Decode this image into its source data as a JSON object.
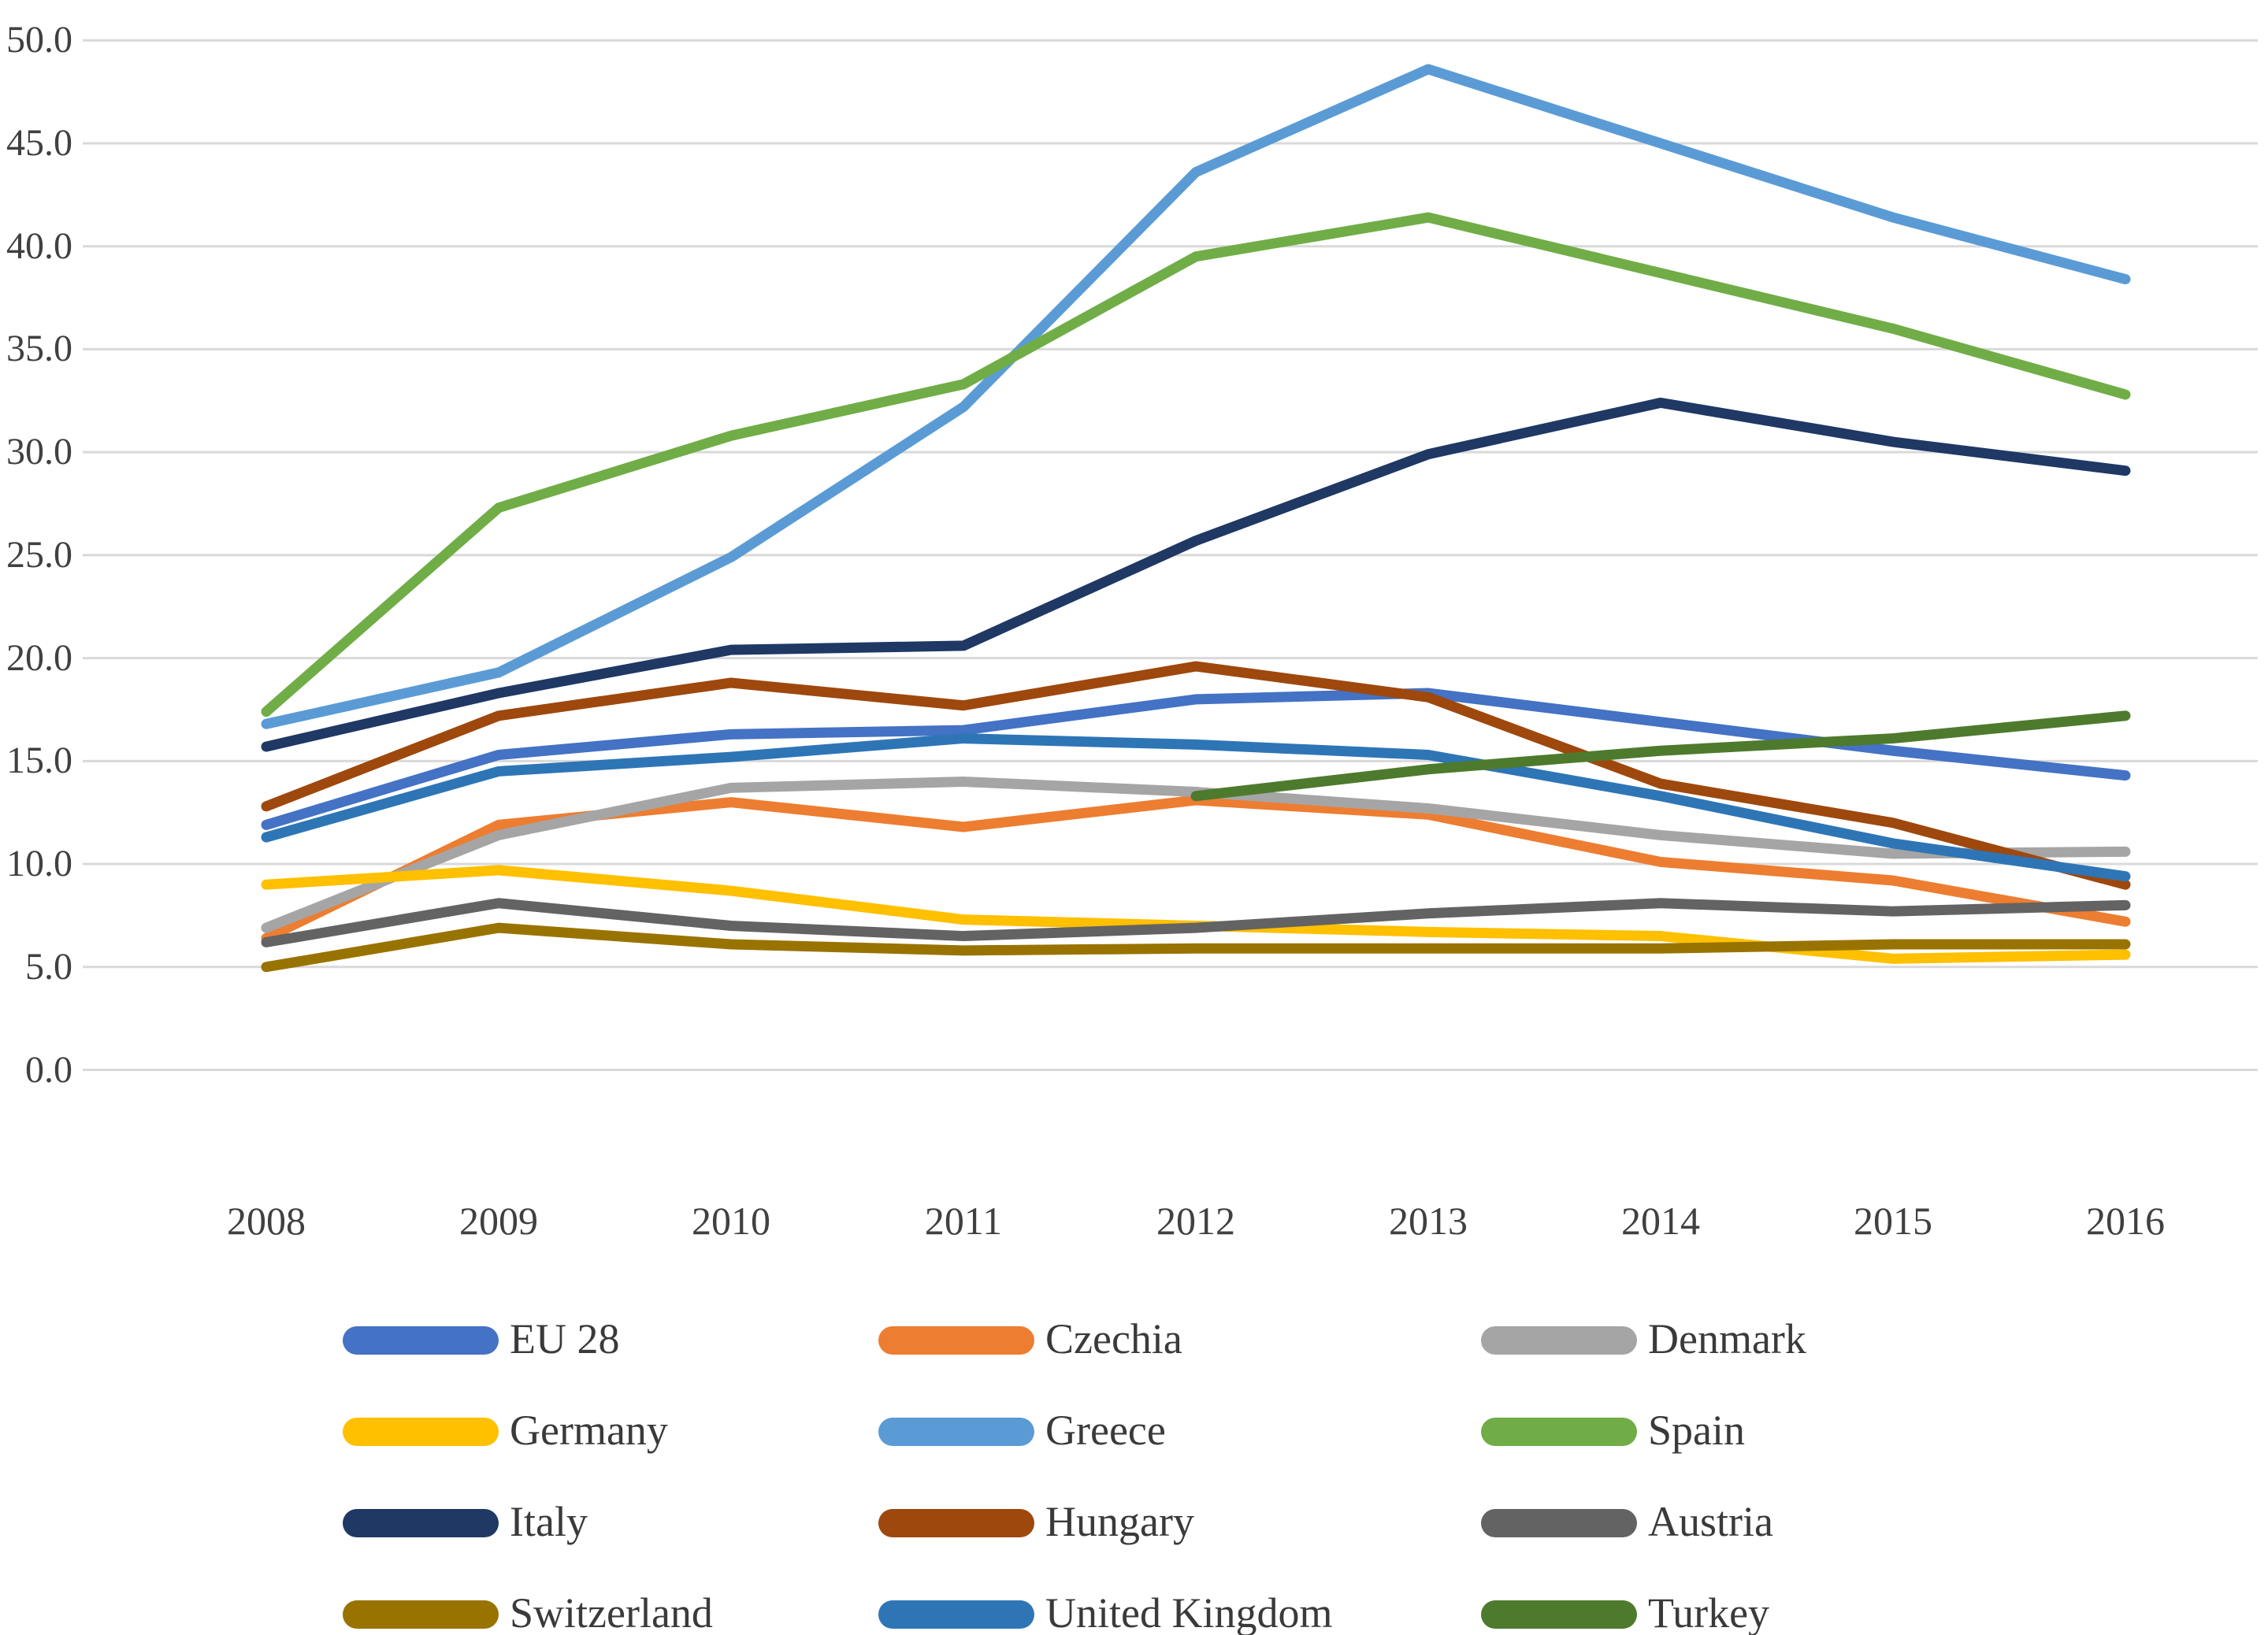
{
  "chart_data": {
    "type": "line",
    "title": "",
    "xlabel": "",
    "ylabel": "",
    "x": [
      2008,
      2009,
      2010,
      2011,
      2012,
      2013,
      2014,
      2015,
      2016
    ],
    "x_tick_labels": [
      "2008",
      "2009",
      "2010",
      "2011",
      "2012",
      "2013",
      "2014",
      "2015",
      "2016"
    ],
    "ylim": [
      0,
      50
    ],
    "y_ticks": [
      {
        "value": 50,
        "label": "50.0"
      },
      {
        "value": 45,
        "label": "45.0"
      },
      {
        "value": 40,
        "label": "40.0"
      },
      {
        "value": 35,
        "label": "35.0"
      },
      {
        "value": 30,
        "label": "30.0"
      },
      {
        "value": 25,
        "label": "25.0"
      },
      {
        "value": 20,
        "label": "20.0"
      },
      {
        "value": 15,
        "label": "15.0"
      },
      {
        "value": 10,
        "label": "10.0"
      },
      {
        "value": 5,
        "label": "5.0"
      },
      {
        "value": 0,
        "label": "0.0"
      }
    ],
    "grid": "horizontal",
    "gridline_color": "#D9D9D9",
    "legend_position": "bottom",
    "series": [
      {
        "name": "EU 28",
        "color": "#4472C4",
        "values": [
          11.9,
          15.3,
          16.3,
          16.5,
          18.0,
          18.3,
          16.9,
          15.5,
          14.3
        ]
      },
      {
        "name": "Czechia",
        "color": "#ED7D31",
        "values": [
          6.4,
          11.9,
          13.0,
          11.8,
          13.1,
          12.4,
          10.1,
          9.2,
          7.2
        ]
      },
      {
        "name": "Denmark",
        "color": "#A5A5A5",
        "values": [
          6.9,
          11.4,
          13.7,
          14.0,
          13.5,
          12.7,
          11.4,
          10.5,
          10.6
        ]
      },
      {
        "name": "Germany",
        "color": "#FFC000",
        "values": [
          9.0,
          9.7,
          8.7,
          7.3,
          7.0,
          6.7,
          6.5,
          5.4,
          5.6
        ]
      },
      {
        "name": "Greece",
        "color": "#5B9BD5",
        "values": [
          16.8,
          19.3,
          24.9,
          32.2,
          43.6,
          48.6,
          45.0,
          41.4,
          38.4
        ]
      },
      {
        "name": "Spain",
        "color": "#70AD47",
        "values": [
          17.4,
          27.3,
          30.8,
          33.3,
          39.5,
          41.4,
          38.7,
          36.0,
          32.8
        ]
      },
      {
        "name": "Italy",
        "color": "#1F3864",
        "values": [
          15.7,
          18.3,
          20.4,
          20.6,
          25.7,
          29.9,
          32.4,
          30.5,
          29.1
        ]
      },
      {
        "name": "Hungary",
        "color": "#9E480E",
        "values": [
          12.8,
          17.2,
          18.8,
          17.7,
          19.6,
          18.1,
          13.9,
          12.0,
          9.0
        ]
      },
      {
        "name": "Austria",
        "color": "#636363",
        "values": [
          6.2,
          8.1,
          7.0,
          6.5,
          6.9,
          7.6,
          8.1,
          7.7,
          8.0
        ]
      },
      {
        "name": "Switzerland",
        "color": "#997300",
        "values": [
          5.0,
          6.9,
          6.1,
          5.8,
          5.9,
          5.9,
          5.9,
          6.1,
          6.1
        ]
      },
      {
        "name": "United Kingdom",
        "color": "#2E75B6",
        "values": [
          11.3,
          14.5,
          15.2,
          16.1,
          15.8,
          15.3,
          13.3,
          11.0,
          9.4
        ]
      },
      {
        "name": "Turkey",
        "color": "#4E7A2D",
        "values": [
          null,
          null,
          null,
          null,
          13.3,
          14.6,
          15.5,
          16.1,
          17.2
        ]
      }
    ]
  }
}
